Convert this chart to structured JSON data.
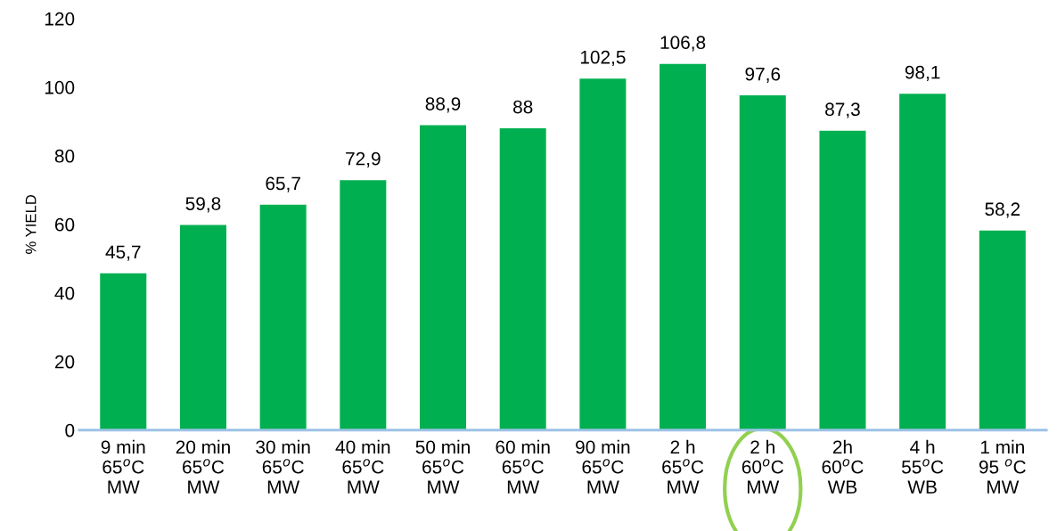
{
  "chart_data": {
    "type": "bar",
    "ylabel": "% YIELD",
    "categories": [
      "9 min\n65$^{o}$C\nMW",
      "20 min\n65$^{o}$C\nMW",
      "30 min\n65$^{o}$C\nMW",
      "40 min\n65$^{o}$C\nMW",
      "50 min\n65$^{o}$C\nMW",
      "60 min\n65$^{o}$C\nMW",
      "90 min\n65$^{o}$C\nMW",
      "2 h\n65$^{o}$C\nMW",
      "2 h\n60$^{o}$C\nMW",
      "2h\n60$^{o}$C\nWB",
      "4 h\n55$^{o}$C\nWB",
      "1 min\n95 $^{o}$C\nMW"
    ],
    "values": [
      45.7,
      59.8,
      65.7,
      72.9,
      88.9,
      88,
      102.5,
      106.8,
      97.6,
      87.3,
      98.1,
      58.2
    ],
    "value_labels": [
      "45,7",
      "59,8",
      "65,7",
      "72,9",
      "88,9",
      "88",
      "102,5",
      "106,8",
      "97,6",
      "87,3",
      "98,1",
      "58,2"
    ],
    "color": "#00b050",
    "ylim": [
      0,
      120
    ],
    "yticks": [
      0,
      20,
      40,
      60,
      80,
      100,
      120
    ],
    "grid": false,
    "legend": false
  }
}
